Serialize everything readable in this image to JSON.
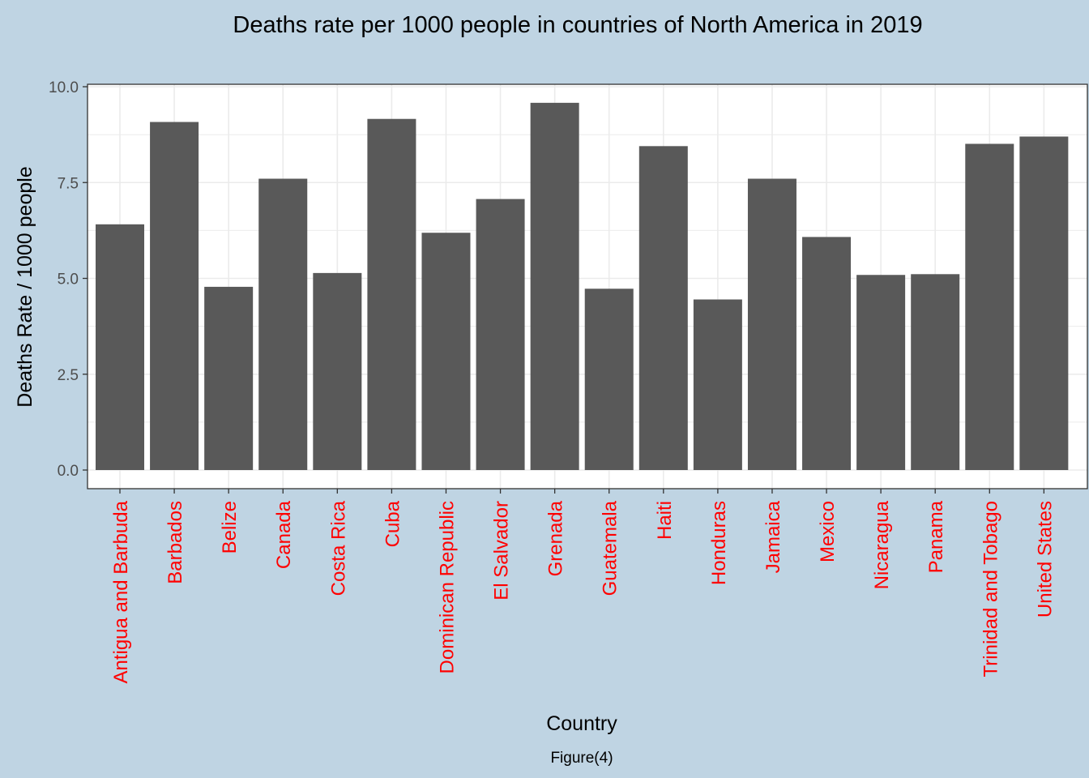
{
  "chart_data": {
    "type": "bar",
    "title": "Deaths rate per 1000 people in countries of North America in 2019",
    "xlabel": "Country",
    "ylabel": "Deaths Rate / 1000 people",
    "caption": "Figure(4)",
    "ylim": [
      0,
      10
    ],
    "yticks": [
      "0.0",
      "2.5",
      "5.0",
      "7.5",
      "10.0"
    ],
    "grid": true,
    "categories": [
      "Antigua and Barbuda",
      "Barbados",
      "Belize",
      "Canada",
      "Costa Rica",
      "Cuba",
      "Dominican Republic",
      "El Salvador",
      "Grenada",
      "Guatemala",
      "Haiti",
      "Honduras",
      "Jamaica",
      "Mexico",
      "Nicaragua",
      "Panama",
      "Trinidad and Tobago",
      "United States"
    ],
    "values": [
      6.41,
      9.08,
      4.78,
      7.6,
      5.14,
      9.16,
      6.19,
      7.07,
      9.58,
      4.73,
      8.45,
      4.45,
      7.6,
      6.08,
      5.09,
      5.11,
      8.51,
      8.7
    ],
    "colors": {
      "background": "#bfd4e3",
      "panel": "#ffffff",
      "bar": "#595959",
      "grid": "#ebebeb",
      "tick_label_x": "#ff0000",
      "tick_label_y": "#4d4d4d",
      "text": "#000000"
    }
  }
}
